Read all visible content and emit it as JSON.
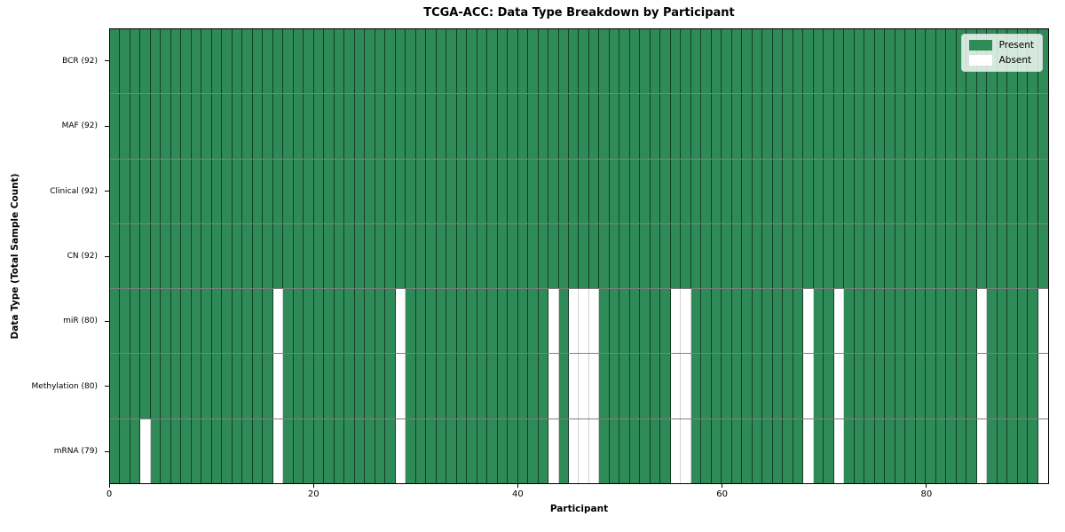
{
  "chart_data": {
    "type": "heatmap",
    "title": "TCGA-ACC: Data Type Breakdown by Participant",
    "xlabel": "Participant",
    "ylabel": "Data Type (Total Sample Count)",
    "n_participants": 92,
    "x_ticks": [
      0,
      20,
      40,
      60,
      80
    ],
    "xlim": [
      0,
      92
    ],
    "grid": "cell-borders",
    "legend_position": "upper-right",
    "legend": [
      {
        "label": "Present",
        "key": "present"
      },
      {
        "label": "Absent",
        "key": "absent"
      }
    ],
    "colors": {
      "present": "#2e8b57",
      "absent": "#ffffff"
    },
    "rows": [
      {
        "label": "BCR (92)",
        "total": 92,
        "absent_participants": []
      },
      {
        "label": "MAF (92)",
        "total": 92,
        "absent_participants": []
      },
      {
        "label": "Clinical (92)",
        "total": 92,
        "absent_participants": []
      },
      {
        "label": "CN (92)",
        "total": 92,
        "absent_participants": []
      },
      {
        "label": "miR (80)",
        "total": 80,
        "absent_participants": [
          16,
          28,
          43,
          45,
          46,
          47,
          55,
          56,
          68,
          71,
          85,
          91
        ]
      },
      {
        "label": "Methylation (80)",
        "total": 80,
        "absent_participants": [
          16,
          28,
          43,
          45,
          46,
          47,
          55,
          56,
          68,
          71,
          85,
          91
        ]
      },
      {
        "label": "mRNA (79)",
        "total": 79,
        "absent_participants": [
          3,
          16,
          28,
          43,
          45,
          46,
          47,
          55,
          56,
          68,
          71,
          85,
          91
        ]
      }
    ]
  }
}
